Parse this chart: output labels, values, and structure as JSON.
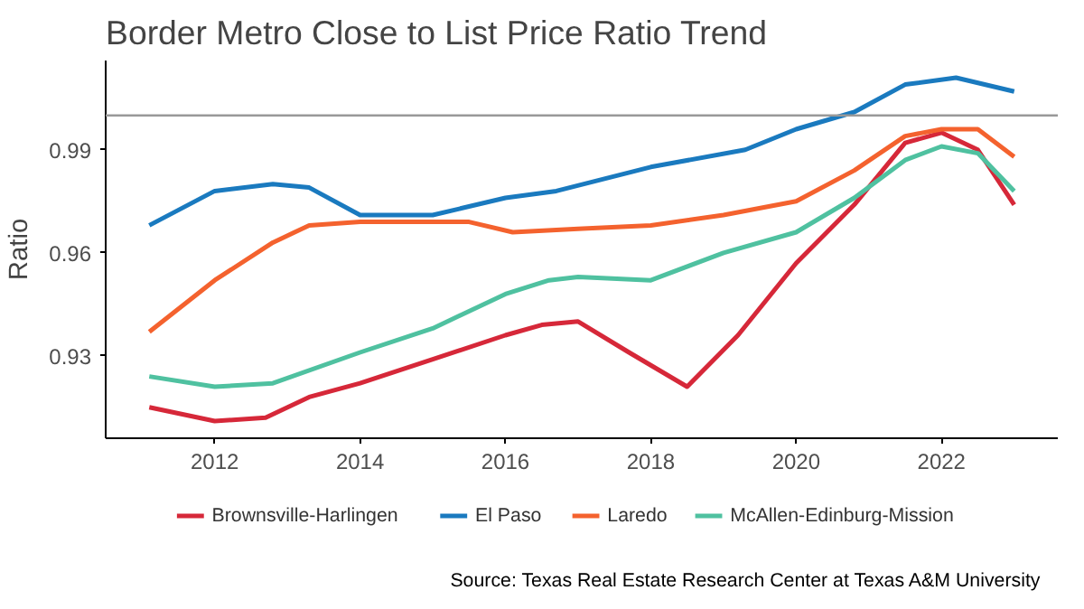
{
  "chart_data": {
    "type": "line",
    "title": "Border Metro Close to List Price Ratio Trend",
    "ylabel": "Ratio",
    "xlim": [
      2010.5,
      2023.6
    ],
    "xticks": [
      2012,
      2014,
      2016,
      2018,
      2020,
      2022
    ],
    "ylim": [
      0.906,
      1.016
    ],
    "yticks": [
      0.93,
      0.96,
      0.99
    ],
    "grid": false,
    "legend": "bottom",
    "line_style": "solid",
    "marker": "none",
    "ref_lines": [
      {
        "axis": "y",
        "value": 1.0,
        "color": "#999999"
      }
    ],
    "annotations": [
      "Source: Texas Real Estate Research Center at Texas A&M University"
    ],
    "series": [
      {
        "name": "Brownsville-Harlingen",
        "color": "#d62839",
        "x": [
          2011.1,
          2012,
          2012.7,
          2013.3,
          2014,
          2015,
          2016,
          2016.5,
          2017,
          2017.7,
          2018.5,
          2019.2,
          2020,
          2020.8,
          2021.5,
          2022,
          2022.5,
          2023
        ],
        "values": [
          0.915,
          0.911,
          0.912,
          0.918,
          0.922,
          0.929,
          0.936,
          0.939,
          0.94,
          0.931,
          0.921,
          0.936,
          0.957,
          0.974,
          0.992,
          0.995,
          0.99,
          0.974
        ]
      },
      {
        "name": "El Paso",
        "color": "#1a7abf",
        "x": [
          2011.1,
          2012,
          2012.8,
          2013.3,
          2014,
          2015,
          2016,
          2016.7,
          2018,
          2019.3,
          2020,
          2020.8,
          2021.5,
          2022.2,
          2023
        ],
        "values": [
          0.968,
          0.978,
          0.98,
          0.979,
          0.971,
          0.971,
          0.976,
          0.978,
          0.985,
          0.99,
          0.996,
          1.001,
          1.009,
          1.011,
          1.007
        ]
      },
      {
        "name": "Laredo",
        "color": "#f4622e",
        "x": [
          2011.1,
          2012,
          2012.8,
          2013.3,
          2014,
          2015,
          2015.5,
          2016.1,
          2017,
          2018,
          2019,
          2020,
          2020.8,
          2021.5,
          2022,
          2022.5,
          2023
        ],
        "values": [
          0.937,
          0.952,
          0.963,
          0.968,
          0.969,
          0.969,
          0.969,
          0.966,
          0.967,
          0.968,
          0.971,
          0.975,
          0.984,
          0.994,
          0.996,
          0.996,
          0.988
        ]
      },
      {
        "name": "McAllen-Edinburg-Mission",
        "color": "#4fc1a0",
        "x": [
          2011.1,
          2012,
          2012.8,
          2014,
          2015,
          2016,
          2016.6,
          2017,
          2018,
          2019,
          2020,
          2020.8,
          2021.5,
          2022,
          2022.5,
          2023
        ],
        "values": [
          0.924,
          0.921,
          0.922,
          0.931,
          0.938,
          0.948,
          0.952,
          0.953,
          0.952,
          0.96,
          0.966,
          0.976,
          0.987,
          0.991,
          0.989,
          0.978
        ]
      }
    ]
  }
}
